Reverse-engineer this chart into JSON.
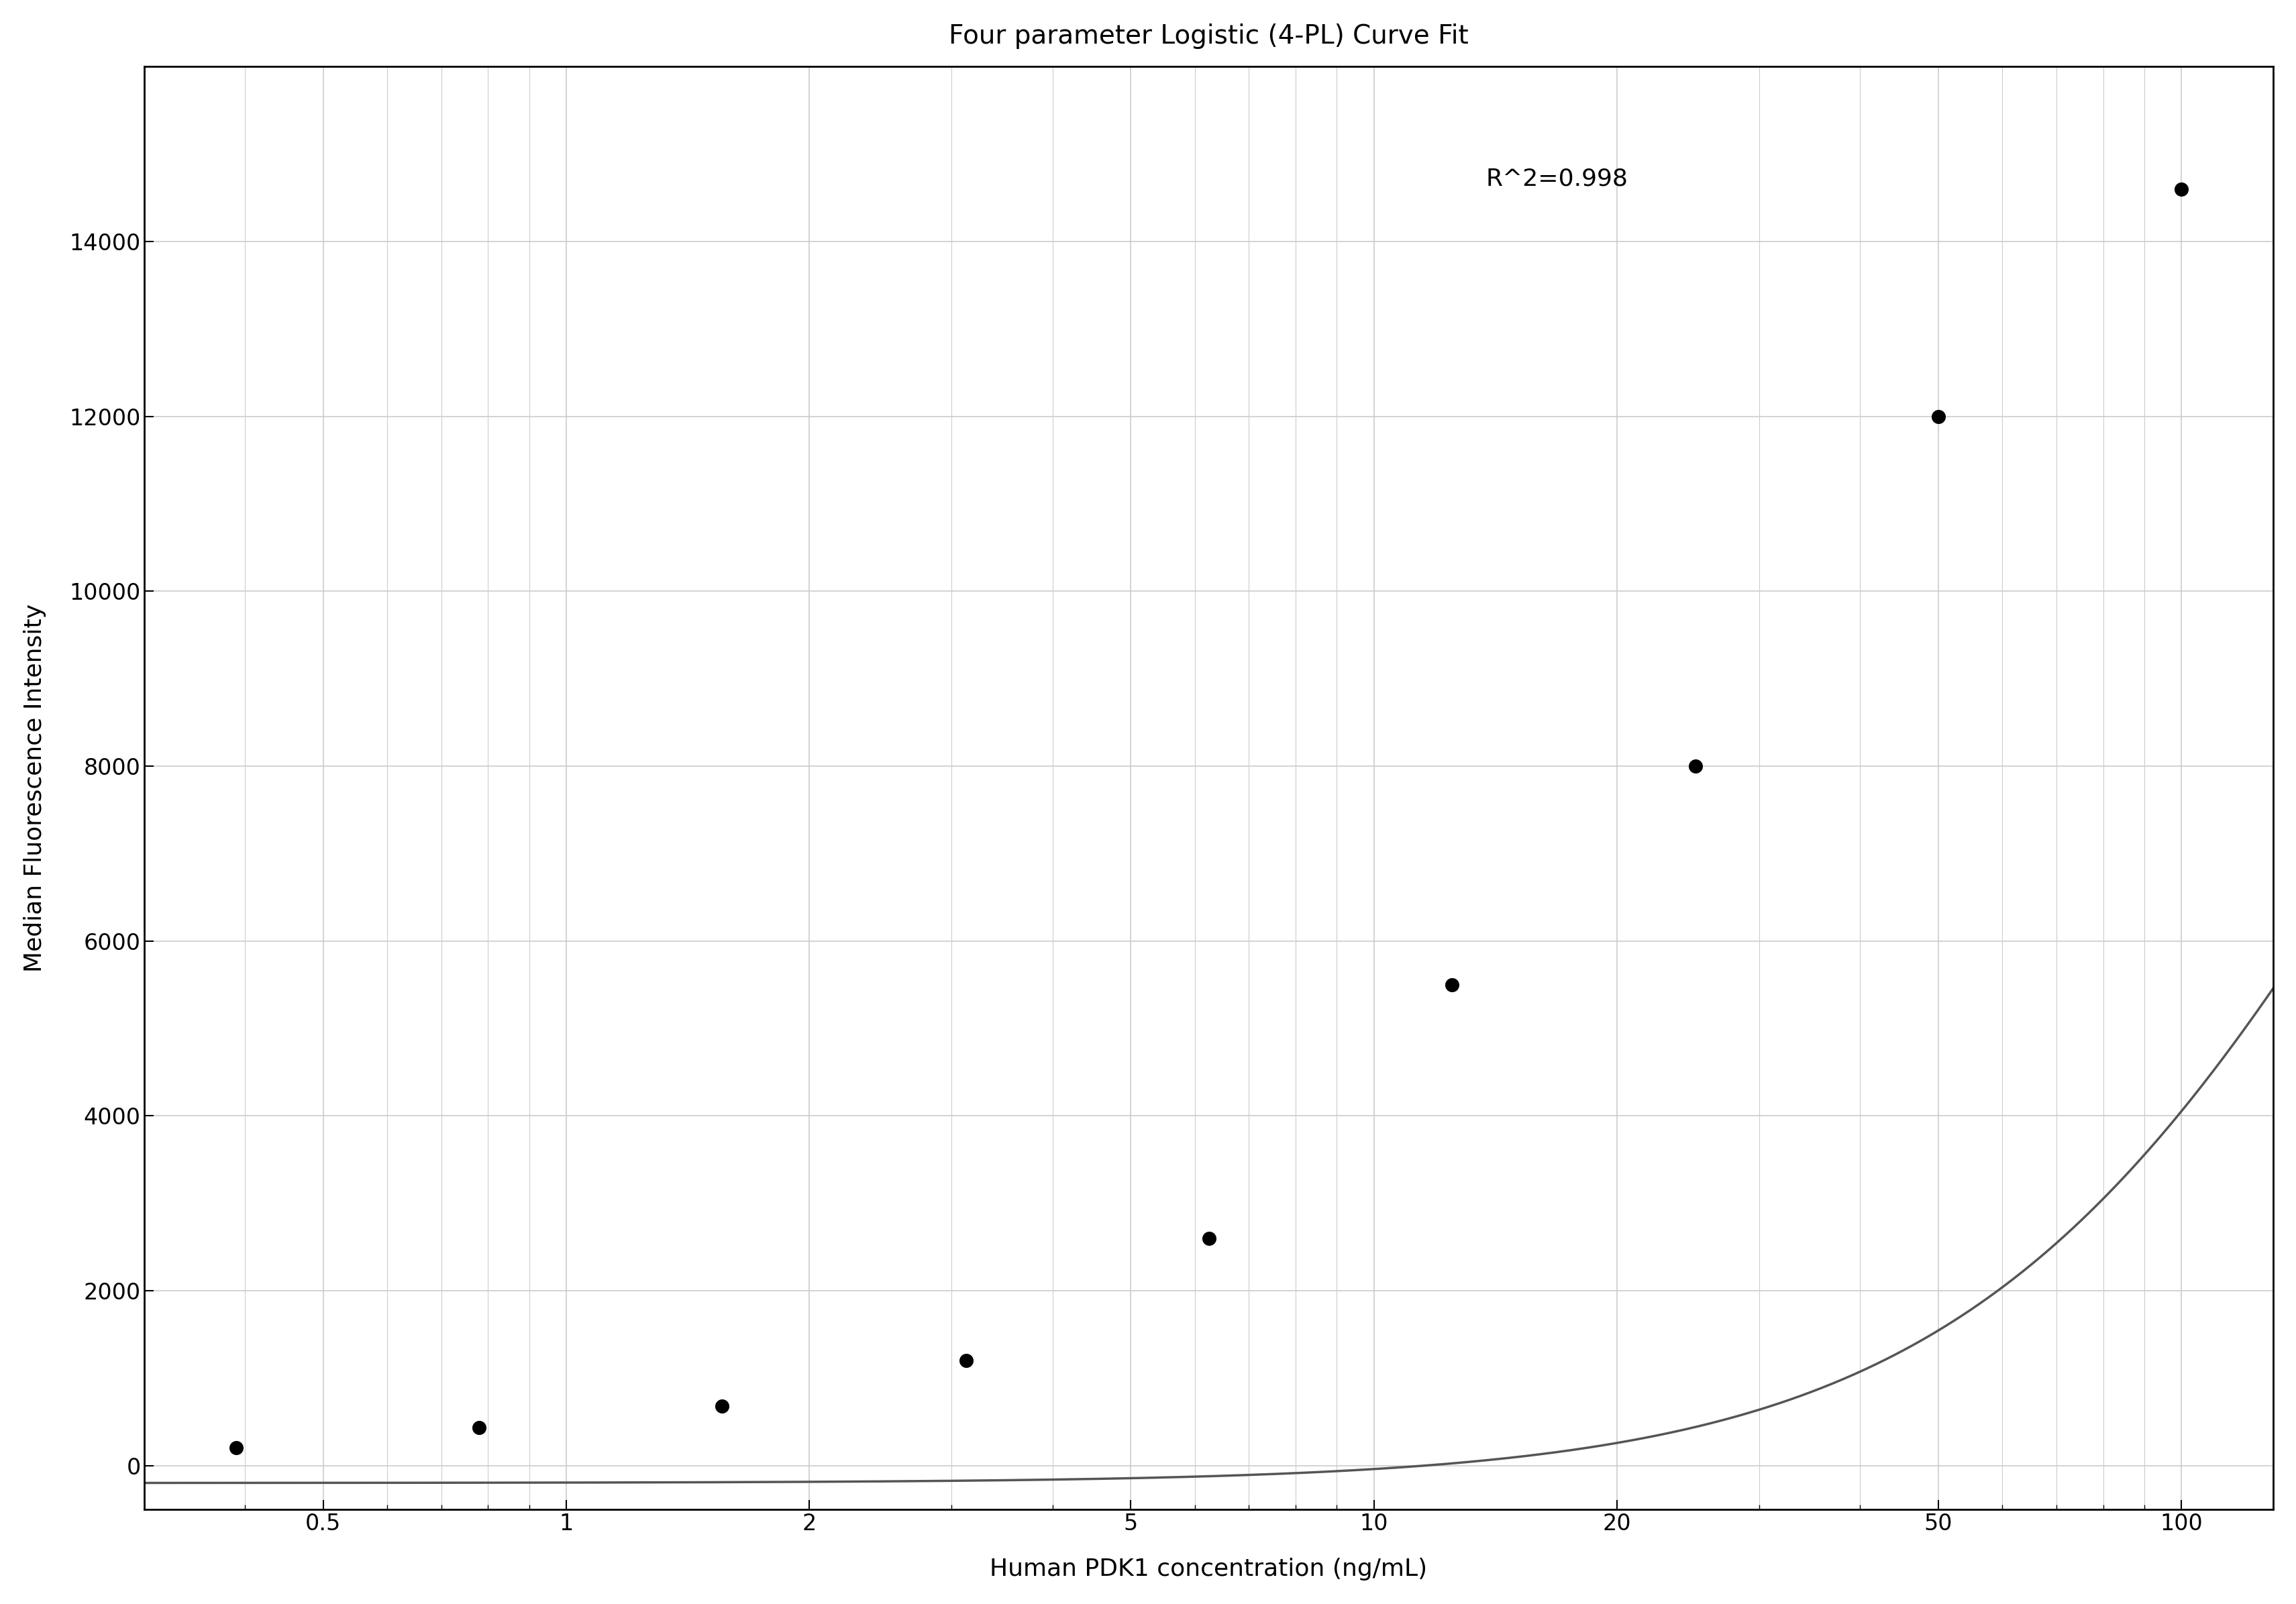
{
  "title": "Four parameter Logistic (4-PL) Curve Fit",
  "xlabel": "Human PDK1 concentration (ng/mL)",
  "ylabel": "Median Fluorescence Intensity",
  "r_squared_text": "R^2=0.998",
  "data_x": [
    0.39,
    0.78,
    1.56,
    3.125,
    6.25,
    12.5,
    25,
    50,
    100
  ],
  "data_y": [
    200,
    430,
    680,
    1200,
    2600,
    5500,
    8000,
    12000,
    14600
  ],
  "xlim_log": [
    0.3,
    130
  ],
  "ylim": [
    -500,
    16000
  ],
  "yticks": [
    0,
    2000,
    4000,
    6000,
    8000,
    10000,
    12000,
    14000
  ],
  "xticks_major": [
    0.5,
    1,
    2,
    5,
    10,
    20,
    50,
    100
  ],
  "curve_color": "#555555",
  "dot_color": "#000000",
  "grid_color": "#cccccc",
  "background_color": "#ffffff",
  "title_fontsize": 28,
  "label_fontsize": 26,
  "tick_fontsize": 24,
  "annotation_fontsize": 26,
  "4PL_A": -200,
  "4PL_B": 1.55,
  "4PL_C": 200,
  "4PL_D": 16500
}
